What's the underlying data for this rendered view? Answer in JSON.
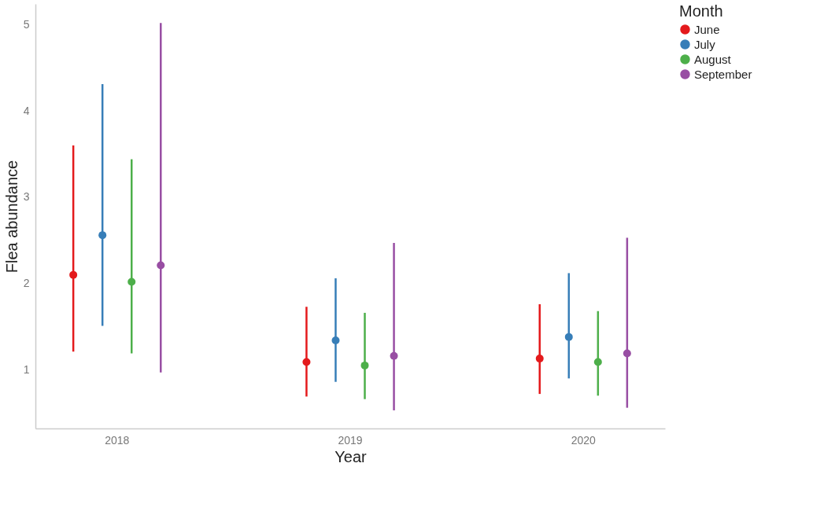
{
  "chart_data": {
    "type": "scatter",
    "xlabel": "Year",
    "ylabel": "Flea abundance",
    "legend_title": "Month",
    "categories": [
      "2018",
      "2019",
      "2020"
    ],
    "ylim": [
      0.32,
      5.24
    ],
    "yticks": [
      1,
      2,
      3,
      4,
      5
    ],
    "grid": false,
    "legend": "top right",
    "marker": "circle",
    "series": [
      {
        "name": "June",
        "color": "#e41a1c",
        "values": [
          2.1,
          1.09,
          1.13
        ],
        "errors": [
          [
            1.21,
            3.6
          ],
          [
            0.69,
            1.73
          ],
          [
            0.72,
            1.76
          ]
        ]
      },
      {
        "name": "July",
        "color": "#377eb8",
        "values": [
          2.56,
          1.34,
          1.38
        ],
        "errors": [
          [
            1.51,
            4.31
          ],
          [
            0.86,
            2.06
          ],
          [
            0.9,
            2.12
          ]
        ]
      },
      {
        "name": "August",
        "color": "#4daf4a",
        "values": [
          2.02,
          1.05,
          1.09
        ],
        "errors": [
          [
            1.19,
            3.44
          ],
          [
            0.66,
            1.66
          ],
          [
            0.7,
            1.68
          ]
        ]
      },
      {
        "name": "September",
        "color": "#984ea3",
        "values": [
          2.21,
          1.16,
          1.19
        ],
        "errors": [
          [
            0.97,
            5.02
          ],
          [
            0.53,
            2.47
          ],
          [
            0.56,
            2.53
          ]
        ]
      }
    ]
  }
}
